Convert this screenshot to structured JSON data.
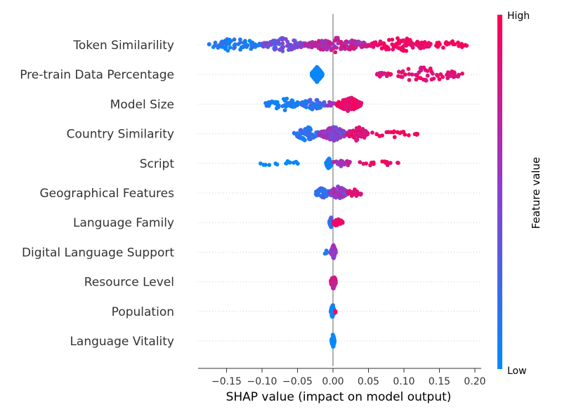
{
  "chart_data": {
    "type": "scatter",
    "subtype": "shap-beeswarm",
    "xlabel": "SHAP value (impact on model output)",
    "xlim": [
      -0.19,
      0.21
    ],
    "xticks": [
      -0.15,
      -0.1,
      -0.05,
      0.0,
      0.05,
      0.1,
      0.15,
      0.2
    ],
    "xtick_labels": [
      "−0.15",
      "−0.10",
      "−0.05",
      "0.00",
      "0.05",
      "0.10",
      "0.15",
      "0.20"
    ],
    "colorbar": {
      "label": "Feature value",
      "high_label": "High",
      "low_label": "Low",
      "low_color": "#008bfb",
      "mid_color": "#8b3fd0",
      "high_color": "#ff0052"
    },
    "features": [
      {
        "name": "Token Similarility",
        "min": -0.175,
        "max": 0.19,
        "clusters": [
          [
            -0.175,
            -0.1,
            0.0,
            0.2,
            70
          ],
          [
            -0.1,
            -0.04,
            0.25,
            0.55,
            90
          ],
          [
            -0.04,
            0.05,
            0.55,
            0.85,
            150
          ],
          [
            0.05,
            0.14,
            0.85,
            1.0,
            110
          ],
          [
            0.14,
            0.19,
            0.92,
            1.0,
            25
          ]
        ]
      },
      {
        "name": "Pre-train Data Percentage",
        "min": -0.03,
        "max": 0.185,
        "clusters": [
          [
            -0.03,
            -0.015,
            0.0,
            0.08,
            130
          ],
          [
            0.06,
            0.185,
            0.75,
            1.0,
            70
          ]
        ]
      },
      {
        "name": "Model Size",
        "min": -0.095,
        "max": 0.04,
        "clusters": [
          [
            -0.095,
            -0.045,
            0.0,
            0.15,
            50
          ],
          [
            -0.045,
            -0.01,
            0.05,
            0.3,
            45
          ],
          [
            -0.01,
            0.005,
            0.5,
            0.7,
            10
          ],
          [
            0.005,
            0.04,
            0.8,
            1.0,
            140
          ]
        ]
      },
      {
        "name": "Country Similarity",
        "min": -0.055,
        "max": 0.12,
        "clusters": [
          [
            -0.055,
            -0.02,
            0.05,
            0.3,
            60
          ],
          [
            -0.02,
            0.02,
            0.3,
            0.7,
            140
          ],
          [
            0.02,
            0.05,
            0.75,
            0.95,
            60
          ],
          [
            0.05,
            0.12,
            0.9,
            1.0,
            20
          ]
        ]
      },
      {
        "name": "Script",
        "min": -0.105,
        "max": 0.095,
        "clusters": [
          [
            -0.105,
            -0.045,
            0.0,
            0.05,
            14
          ],
          [
            -0.01,
            -0.002,
            0.0,
            0.1,
            40
          ],
          [
            0.0,
            0.025,
            0.5,
            0.75,
            20
          ],
          [
            0.035,
            0.095,
            0.85,
            1.0,
            16
          ]
        ]
      },
      {
        "name": "Geographical Features",
        "min": -0.025,
        "max": 0.04,
        "clusters": [
          [
            -0.025,
            -0.005,
            0.05,
            0.3,
            40
          ],
          [
            -0.005,
            0.02,
            0.35,
            0.7,
            110
          ],
          [
            0.02,
            0.04,
            0.8,
            1.0,
            25
          ]
        ]
      },
      {
        "name": "Language Family",
        "min": -0.005,
        "max": 0.014,
        "clusters": [
          [
            -0.005,
            0.0,
            0.1,
            0.45,
            40
          ],
          [
            0.0,
            0.014,
            0.8,
            1.0,
            25
          ]
        ]
      },
      {
        "name": "Digital Language Support",
        "min": -0.015,
        "max": 0.004,
        "clusters": [
          [
            -0.015,
            -0.005,
            0.0,
            0.2,
            4
          ],
          [
            -0.003,
            0.004,
            0.45,
            0.7,
            60
          ]
        ]
      },
      {
        "name": "Resource Level",
        "min": -0.003,
        "max": 0.004,
        "clusters": [
          [
            -0.003,
            0.004,
            0.6,
            0.85,
            70
          ]
        ]
      },
      {
        "name": "Population",
        "min": -0.003,
        "max": 0.006,
        "clusters": [
          [
            -0.003,
            0.002,
            0.0,
            0.15,
            70
          ],
          [
            0.003,
            0.006,
            0.9,
            1.0,
            2
          ]
        ]
      },
      {
        "name": "Language Vitality",
        "min": -0.002,
        "max": 0.002,
        "clusters": [
          [
            -0.002,
            0.002,
            0.0,
            0.05,
            80
          ]
        ]
      }
    ]
  }
}
